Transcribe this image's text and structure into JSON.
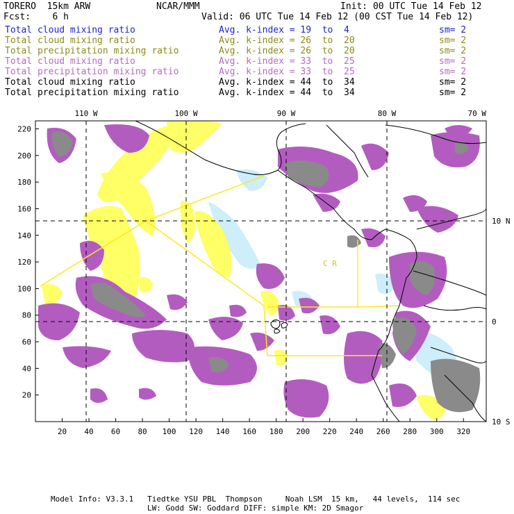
{
  "header": {
    "model": "TORERO  15km ARW",
    "org": "NCAR/MMM",
    "init": "Init: 00 UTC Tue 14 Feb 12",
    "fcst": "Fcst:    6 h",
    "valid": "Valid: 06 UTC Tue 14 Feb 12 (00 CST Tue 14 Feb 12)"
  },
  "fields": [
    {
      "name": "Total cloud mixing ratio",
      "avg": "Avg. k-index = ",
      "k1": "19",
      "to": "to",
      "k2": "4",
      "sm": "sm= 2",
      "color": "#1f1fd0"
    },
    {
      "name": "Total cloud mixing ratio",
      "avg": "Avg. k-index = ",
      "k1": "26",
      "to": "to",
      "k2": "20",
      "sm": "sm= 2",
      "color": "#8a8a1a"
    },
    {
      "name": "Total precipitation mixing ratio",
      "avg": "Avg. k-index = ",
      "k1": "26",
      "to": "to",
      "k2": "20",
      "sm": "sm= 2",
      "color": "#8a8a1a"
    },
    {
      "name": "Total cloud mixing ratio",
      "avg": "Avg. k-index = ",
      "k1": "33",
      "to": "to",
      "k2": "25",
      "sm": "sm= 2",
      "color": "#b56ac0"
    },
    {
      "name": "Total precipitation mixing ratio",
      "avg": "Avg. k-index = ",
      "k1": "33",
      "to": "to",
      "k2": "25",
      "sm": "sm= 2",
      "color": "#b56ac0"
    },
    {
      "name": "Total cloud mixing ratio",
      "avg": "Avg. k-index = ",
      "k1": "44",
      "to": "to",
      "k2": "34",
      "sm": "sm= 2",
      "color": "#000000"
    },
    {
      "name": "Total precipitation mixing ratio",
      "avg": "Avg. k-index = ",
      "k1": "44",
      "to": "to",
      "k2": "34",
      "sm": "sm= 2",
      "color": "#000000"
    }
  ],
  "map": {
    "x_ticks": [
      "20",
      "40",
      "60",
      "80",
      "100",
      "120",
      "140",
      "160",
      "180",
      "200",
      "220",
      "240",
      "260",
      "280",
      "300",
      "320"
    ],
    "y_ticks": [
      "20",
      "40",
      "60",
      "80",
      "100",
      "120",
      "140",
      "160",
      "180",
      "200",
      "220"
    ],
    "lon_labels": [
      "110 W",
      "100 W",
      "90 W",
      "80 W",
      "70 W"
    ],
    "lat_labels": [
      "10 N",
      "0",
      "10 S"
    ],
    "country_label": "C  R",
    "colors": {
      "yellow": "#ffff66",
      "yellow_line": "#ffe81a",
      "purple": "#b35cc0",
      "gray": "#808080",
      "lightblue": "#cdeefa",
      "grid": "#000000"
    }
  },
  "footer": {
    "line1": "Model Info: V3.3.1   Tiedtke YSU PBL  Thompson     Noah LSM  15 km,   44 levels,  114 sec",
    "line2": "LW: Godd SW: Goddard DIFF: simple KM: 2D Smagor"
  }
}
